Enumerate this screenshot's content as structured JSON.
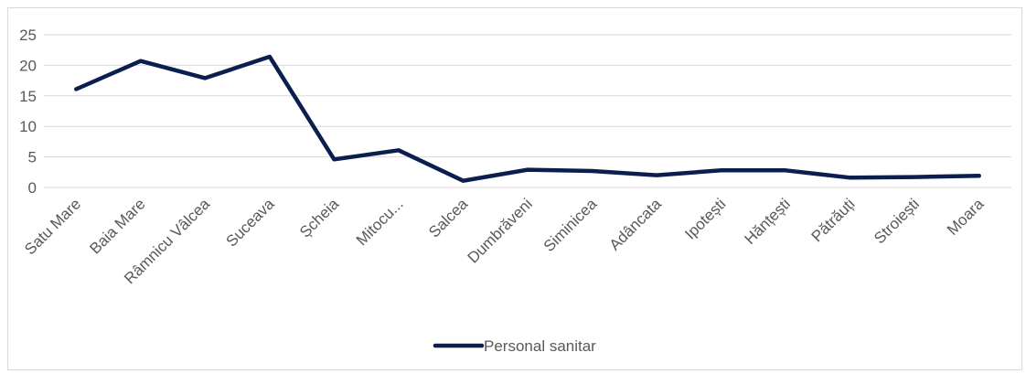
{
  "chart_data": {
    "type": "line",
    "categories": [
      "Satu Mare",
      "Baia Mare",
      "Râmnicu Vâlcea",
      "Suceava",
      "Șcheia",
      "Mitocu...",
      "Salcea",
      "Dumbrăveni",
      "Siminicea",
      "Adâncata",
      "Ipotești",
      "Hănțești",
      "Pătrăuți",
      "Stroiești",
      "Moara"
    ],
    "series": [
      {
        "name": "Personal sanitar",
        "values": [
          16.1,
          20.7,
          17.9,
          21.4,
          4.6,
          6.1,
          1.1,
          2.9,
          2.7,
          2.0,
          2.8,
          2.8,
          1.6,
          1.7,
          1.9
        ],
        "color": "#0b1f4f"
      }
    ],
    "ylim": [
      0,
      25
    ],
    "yticks": [
      "0",
      "5",
      "10",
      "15",
      "20",
      "25"
    ],
    "grid": true,
    "legend_position": "bottom"
  }
}
